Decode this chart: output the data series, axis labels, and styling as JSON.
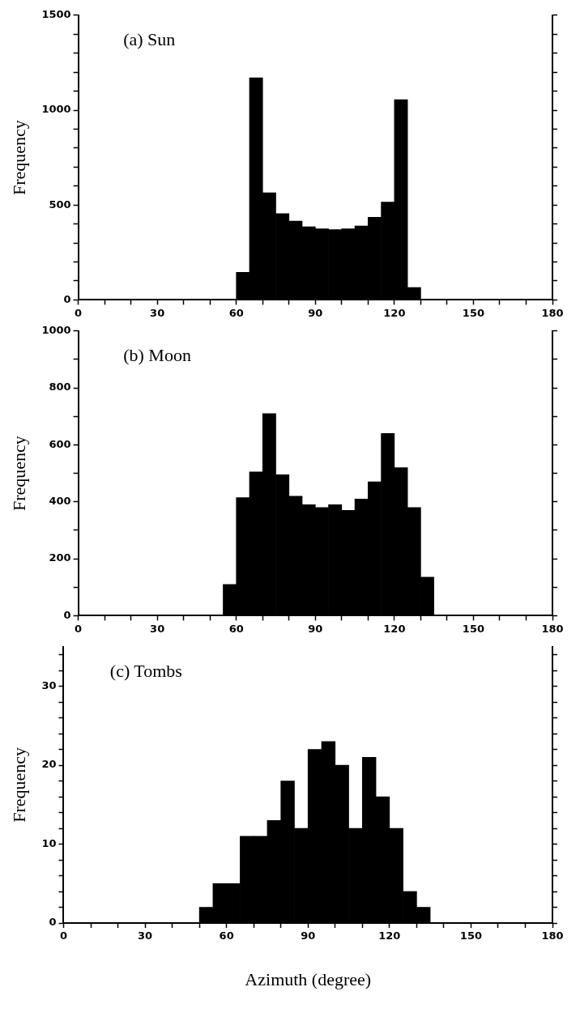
{
  "chart_data": [
    {
      "type": "histogram",
      "title": "(a) Sun",
      "ylabel": "Frequency",
      "color": "#000000",
      "bins": [
        60,
        65,
        70,
        75,
        80,
        85,
        90,
        95,
        100,
        105,
        110,
        115,
        120,
        125,
        130
      ],
      "values": [
        145,
        1170,
        565,
        455,
        415,
        385,
        375,
        370,
        375,
        390,
        435,
        515,
        1055,
        65
      ],
      "xlim": [
        0,
        180
      ],
      "xticks": [
        0,
        {
          "value": 10,
          "label": null
        },
        {
          "value": 20,
          "label": null
        },
        30,
        {
          "value": 40,
          "label": null
        },
        {
          "value": 50,
          "label": null
        },
        60,
        {
          "value": 70,
          "label": null
        },
        {
          "value": 80,
          "label": null
        },
        90,
        {
          "value": 100,
          "label": null
        },
        {
          "value": 110,
          "label": null
        },
        120,
        {
          "value": 130,
          "label": null
        },
        {
          "value": 140,
          "label": null
        },
        150,
        {
          "value": 160,
          "label": null
        },
        {
          "value": 170,
          "label": null
        },
        180
      ],
      "ylim": [
        0,
        1500
      ],
      "yticks": [
        0,
        {
          "value": 100,
          "label": null
        },
        {
          "value": 200,
          "label": null
        },
        {
          "value": 300,
          "label": null
        },
        {
          "value": 400,
          "label": null
        },
        500,
        {
          "value": 600,
          "label": null
        },
        {
          "value": 700,
          "label": null
        },
        {
          "value": 800,
          "label": null
        },
        {
          "value": 900,
          "label": null
        },
        1000,
        {
          "value": 1100,
          "label": null
        },
        {
          "value": 1200,
          "label": null
        },
        {
          "value": 1300,
          "label": null
        },
        {
          "value": 1400,
          "label": null
        },
        1500
      ]
    },
    {
      "type": "histogram",
      "title": "(b) Moon",
      "ylabel": "Frequency",
      "color": "#000000",
      "bins": [
        55,
        60,
        65,
        70,
        75,
        80,
        85,
        90,
        95,
        100,
        105,
        110,
        115,
        120,
        125,
        130,
        135
      ],
      "values": [
        110,
        415,
        505,
        710,
        495,
        420,
        390,
        380,
        390,
        370,
        410,
        470,
        640,
        520,
        380,
        135
      ],
      "xlim": [
        0,
        180
      ],
      "xticks": [
        0,
        {
          "value": 10,
          "label": null
        },
        {
          "value": 20,
          "label": null
        },
        30,
        {
          "value": 40,
          "label": null
        },
        {
          "value": 50,
          "label": null
        },
        60,
        {
          "value": 70,
          "label": null
        },
        {
          "value": 80,
          "label": null
        },
        90,
        {
          "value": 100,
          "label": null
        },
        {
          "value": 110,
          "label": null
        },
        120,
        {
          "value": 130,
          "label": null
        },
        {
          "value": 140,
          "label": null
        },
        150,
        {
          "value": 160,
          "label": null
        },
        {
          "value": 170,
          "label": null
        },
        180
      ],
      "ylim": [
        0,
        1000
      ],
      "yticks": [
        0,
        {
          "value": 100,
          "label": null
        },
        200,
        {
          "value": 300,
          "label": null
        },
        400,
        {
          "value": 500,
          "label": null
        },
        600,
        {
          "value": 700,
          "label": null
        },
        800,
        {
          "value": 900,
          "label": null
        },
        1000
      ]
    },
    {
      "type": "histogram",
      "title": "(c) Tombs",
      "ylabel": "Frequency",
      "xlabel": "Azimuth (degree)",
      "color": "#000000",
      "bins": [
        50,
        55,
        60,
        65,
        70,
        75,
        80,
        85,
        90,
        95,
        100,
        105,
        110,
        115,
        120,
        125,
        130,
        135
      ],
      "values": [
        2,
        5,
        5,
        11,
        11,
        13,
        18,
        12,
        22,
        23,
        20,
        12,
        21,
        16,
        12,
        4,
        2
      ],
      "xlim": [
        0,
        180
      ],
      "xticks": [
        0,
        {
          "value": 10,
          "label": null
        },
        {
          "value": 20,
          "label": null
        },
        30,
        {
          "value": 40,
          "label": null
        },
        {
          "value": 50,
          "label": null
        },
        60,
        {
          "value": 70,
          "label": null
        },
        {
          "value": 80,
          "label": null
        },
        90,
        {
          "value": 100,
          "label": null
        },
        {
          "value": 110,
          "label": null
        },
        120,
        {
          "value": 130,
          "label": null
        },
        {
          "value": 140,
          "label": null
        },
        150,
        {
          "value": 160,
          "label": null
        },
        {
          "value": 170,
          "label": null
        },
        180
      ],
      "ylim": [
        0,
        35
      ],
      "yticks": [
        0,
        {
          "value": 2,
          "label": null
        },
        {
          "value": 4,
          "label": null
        },
        {
          "value": 6,
          "label": null
        },
        {
          "value": 8,
          "label": null
        },
        10,
        {
          "value": 12,
          "label": null
        },
        {
          "value": 14,
          "label": null
        },
        {
          "value": 16,
          "label": null
        },
        {
          "value": 18,
          "label": null
        },
        20,
        {
          "value": 22,
          "label": null
        },
        {
          "value": 24,
          "label": null
        },
        {
          "value": 26,
          "label": null
        },
        {
          "value": 28,
          "label": null
        },
        30,
        {
          "value": 32,
          "label": null
        },
        {
          "value": 34,
          "label": null
        }
      ]
    }
  ]
}
